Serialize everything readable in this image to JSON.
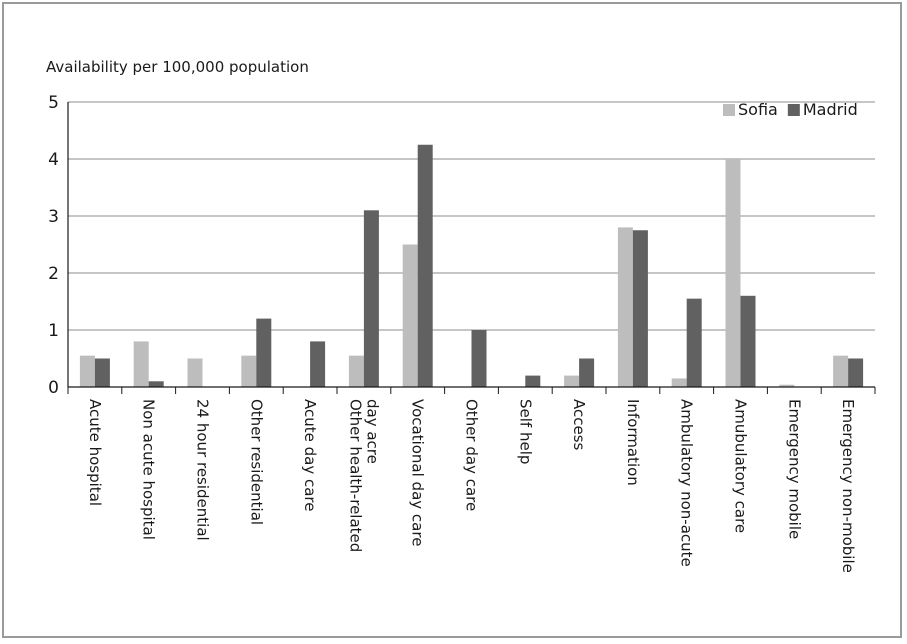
{
  "chart_data": {
    "type": "bar",
    "ylabel": "Availability per 100,000 population",
    "ylim": [
      0,
      5
    ],
    "yticks": [
      0,
      1,
      2,
      3,
      4,
      5
    ],
    "grid": true,
    "legend_position": "top-right",
    "categories": [
      [
        "Acute hospital"
      ],
      [
        "Non acute hospital"
      ],
      [
        "24 hour residential"
      ],
      [
        "Other residential"
      ],
      [
        "Acute day care"
      ],
      [
        "Other health-related",
        "day acre"
      ],
      [
        "Vocational day care"
      ],
      [
        "Other day care"
      ],
      [
        "Self help"
      ],
      [
        "Access"
      ],
      [
        "Information"
      ],
      [
        "Ambulatory non-acute"
      ],
      [
        "Amubulatory care"
      ],
      [
        "Emergency mobile"
      ],
      [
        "Emergency non-mobile"
      ]
    ],
    "series": [
      {
        "name": "Sofia",
        "color": "#bdbdbd",
        "values": [
          0.55,
          0.8,
          0.5,
          0.55,
          0,
          0.55,
          2.5,
          0,
          0,
          0.2,
          2.8,
          0.15,
          4.0,
          0.04,
          0.55
        ]
      },
      {
        "name": "Madrid",
        "color": "#616161",
        "values": [
          0.5,
          0.1,
          0,
          1.2,
          0.8,
          3.1,
          4.25,
          1.0,
          0.2,
          0.5,
          2.75,
          1.55,
          1.6,
          0,
          0.5
        ]
      }
    ]
  }
}
